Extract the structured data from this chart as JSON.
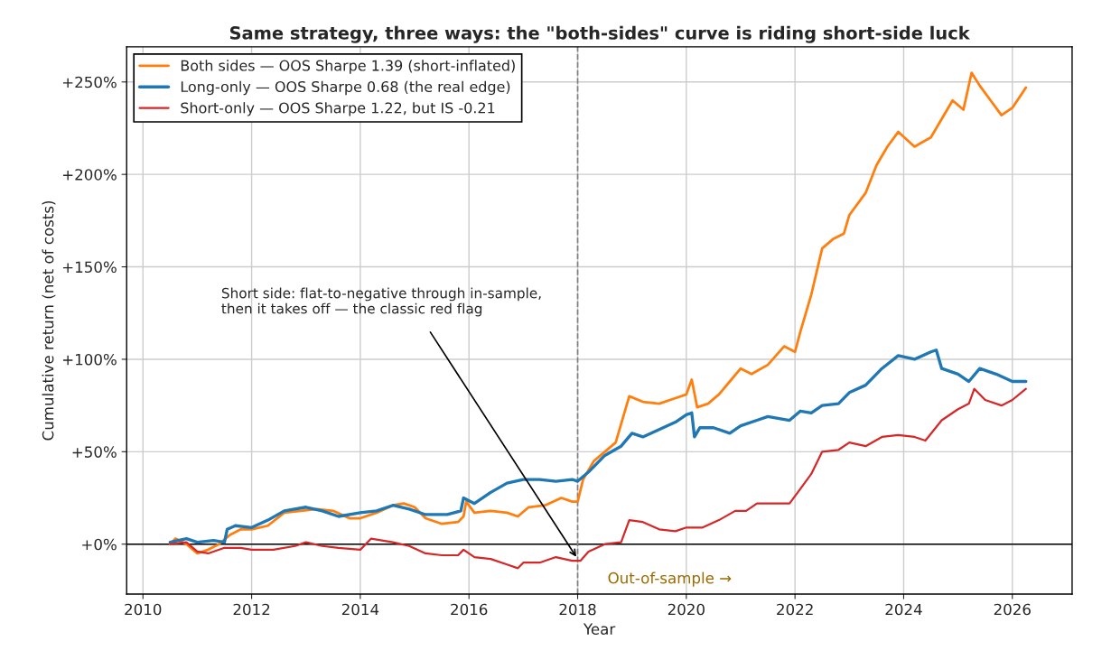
{
  "chart_data": {
    "type": "line",
    "title": "Same strategy, three ways: the \"both-sides\" curve is riding short-side luck",
    "xlabel": "Year",
    "ylabel": "Cumulative return (net of costs)",
    "xlim": [
      2009.7,
      2027.1
    ],
    "xticks": [
      2010,
      2012,
      2014,
      2016,
      2018,
      2020,
      2022,
      2024,
      2026
    ],
    "ylim": [
      -27,
      269
    ],
    "yticks": [
      {
        "value": 0,
        "label": "+0%"
      },
      {
        "value": 50,
        "label": "+50%"
      },
      {
        "value": 100,
        "label": "+100%"
      },
      {
        "value": 150,
        "label": "+150%"
      },
      {
        "value": 200,
        "label": "+200%"
      },
      {
        "value": 250,
        "label": "+250%"
      }
    ],
    "grid": true,
    "legend": "top left",
    "line_style": "solid",
    "series": [
      {
        "name": "Both sides — OOS Sharpe 1.39 (short-inflated)",
        "color": "#ff7f0e",
        "x": [
          2010.5,
          2010.6,
          2010.8,
          2011.0,
          2011.2,
          2011.4,
          2011.6,
          2011.8,
          2012.0,
          2012.3,
          2012.6,
          2012.9,
          2013.2,
          2013.5,
          2013.8,
          2014.0,
          2014.3,
          2014.6,
          2014.8,
          2015.0,
          2015.2,
          2015.5,
          2015.8,
          2015.9,
          2015.95,
          2016.1,
          2016.4,
          2016.7,
          2016.9,
          2017.1,
          2017.4,
          2017.7,
          2017.9,
          2018.0,
          2018.1,
          2018.3,
          2018.5,
          2018.7,
          2018.8,
          2018.95,
          2019.2,
          2019.5,
          2019.8,
          2020.0,
          2020.1,
          2020.2,
          2020.4,
          2020.6,
          2020.8,
          2021.0,
          2021.2,
          2021.5,
          2021.8,
          2022.0,
          2022.1,
          2022.3,
          2022.5,
          2022.7,
          2022.9,
          2023.0,
          2023.3,
          2023.5,
          2023.7,
          2023.9,
          2024.2,
          2024.5,
          2024.7,
          2024.9,
          2025.1,
          2025.25,
          2025.4,
          2025.6,
          2025.8,
          2026.0,
          2026.25
        ],
        "values": [
          0,
          3,
          0,
          -5,
          -3,
          0,
          5,
          8,
          8,
          10,
          17,
          18,
          19,
          18,
          14,
          14,
          17,
          21,
          22,
          20,
          14,
          11,
          12,
          15,
          23,
          17,
          18,
          17,
          15,
          20,
          21,
          25,
          23,
          23,
          35,
          45,
          50,
          55,
          65,
          80,
          77,
          76,
          79,
          81,
          89,
          74,
          76,
          81,
          88,
          95,
          92,
          97,
          107,
          104,
          115,
          135,
          160,
          165,
          168,
          178,
          190,
          205,
          215,
          223,
          215,
          220,
          230,
          240,
          235,
          255,
          248,
          240,
          232,
          236,
          247
        ]
      },
      {
        "name": "Long-only — OOS Sharpe 0.68 (the real edge)",
        "color": "#1f77b4",
        "x": [
          2010.5,
          2010.8,
          2011.0,
          2011.3,
          2011.5,
          2011.55,
          2011.7,
          2012.0,
          2012.3,
          2012.6,
          2013.0,
          2013.3,
          2013.6,
          2014.0,
          2014.3,
          2014.6,
          2014.9,
          2015.2,
          2015.6,
          2015.85,
          2015.9,
          2016.1,
          2016.4,
          2016.7,
          2017.0,
          2017.3,
          2017.6,
          2017.9,
          2018.0,
          2018.2,
          2018.5,
          2018.8,
          2019.0,
          2019.2,
          2019.5,
          2019.8,
          2020.0,
          2020.1,
          2020.15,
          2020.25,
          2020.5,
          2020.8,
          2021.0,
          2021.3,
          2021.5,
          2021.9,
          2022.1,
          2022.3,
          2022.5,
          2022.8,
          2023.0,
          2023.3,
          2023.6,
          2023.9,
          2024.2,
          2024.5,
          2024.6,
          2024.7,
          2025.0,
          2025.2,
          2025.4,
          2025.7,
          2026.0,
          2026.25
        ],
        "values": [
          1,
          3,
          1,
          2,
          1,
          8,
          10,
          9,
          13,
          18,
          20,
          18,
          15,
          17,
          18,
          21,
          19,
          16,
          16,
          18,
          25,
          22,
          28,
          33,
          35,
          35,
          34,
          35,
          34,
          39,
          48,
          53,
          60,
          58,
          62,
          66,
          70,
          71,
          58,
          63,
          63,
          60,
          64,
          67,
          69,
          67,
          72,
          71,
          75,
          76,
          82,
          86,
          95,
          102,
          100,
          104,
          105,
          95,
          92,
          88,
          95,
          92,
          88,
          88
        ]
      },
      {
        "name": "Short-only — OOS Sharpe 1.22, but IS -0.21",
        "color": "#d62728",
        "x": [
          2010.5,
          2010.8,
          2011.0,
          2011.2,
          2011.5,
          2011.8,
          2012.0,
          2012.4,
          2012.8,
          2013.0,
          2013.3,
          2013.6,
          2014.0,
          2014.2,
          2014.6,
          2014.9,
          2015.2,
          2015.5,
          2015.8,
          2015.9,
          2016.1,
          2016.4,
          2016.7,
          2016.9,
          2017.0,
          2017.3,
          2017.6,
          2017.9,
          2018.05,
          2018.2,
          2018.5,
          2018.8,
          2018.95,
          2019.2,
          2019.5,
          2019.8,
          2020.0,
          2020.3,
          2020.6,
          2020.9,
          2021.1,
          2021.3,
          2021.6,
          2021.9,
          2022.1,
          2022.3,
          2022.5,
          2022.8,
          2023.0,
          2023.3,
          2023.6,
          2023.9,
          2024.2,
          2024.4,
          2024.7,
          2025.0,
          2025.2,
          2025.3,
          2025.5,
          2025.8,
          2026.0,
          2026.25
        ],
        "values": [
          0,
          1,
          -4,
          -5,
          -2,
          -2,
          -3,
          -3,
          -1,
          1,
          -1,
          -2,
          -3,
          3,
          1,
          -1,
          -5,
          -6,
          -6,
          -3,
          -7,
          -8,
          -11,
          -13,
          -10,
          -10,
          -7,
          -9,
          -9,
          -4,
          0,
          1,
          13,
          12,
          8,
          7,
          9,
          9,
          13,
          18,
          18,
          22,
          22,
          22,
          30,
          38,
          50,
          51,
          55,
          53,
          58,
          59,
          58,
          56,
          67,
          73,
          76,
          84,
          78,
          75,
          78,
          84
        ]
      }
    ],
    "ref_lines": [
      {
        "axis": "y",
        "value": 0,
        "color": "#000000",
        "line_style": "solid"
      },
      {
        "axis": "x",
        "value": 2018,
        "label": "Out-of-sample →",
        "color": "#808080",
        "line_style": "dashed"
      }
    ],
    "annotations": [
      {
        "text": "Short side: flat-to-negative through in-sample,\nthen it takes off — the classic red flag",
        "x": 2018,
        "y": -8
      }
    ]
  }
}
